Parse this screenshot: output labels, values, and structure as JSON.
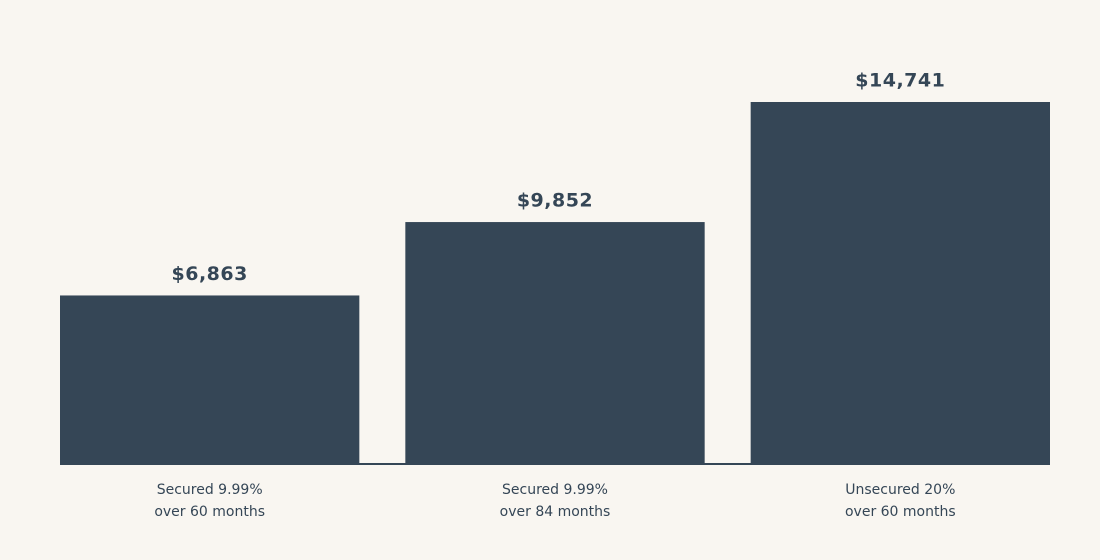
{
  "chart_data": {
    "type": "bar",
    "categories": [
      [
        "Secured 9.99%",
        "over 60 months"
      ],
      [
        "Secured 9.99%",
        "over 84 months"
      ],
      [
        "Unsecured 20%",
        "over 60 months"
      ]
    ],
    "values": [
      6863,
      9852,
      14741
    ],
    "value_labels": [
      "$6,863",
      "$9,852",
      "$14,741"
    ],
    "color": "#354656"
  }
}
